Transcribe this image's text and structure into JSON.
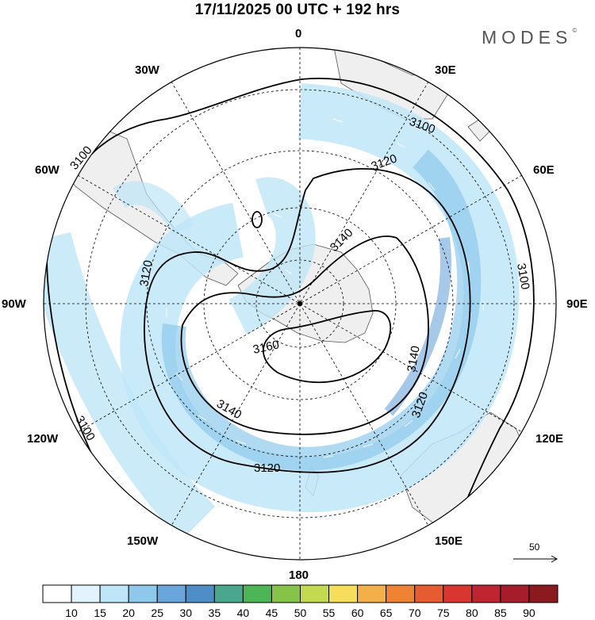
{
  "header": {
    "title": "17/11/2025  00 UTC  + 192 hrs",
    "brand": "MODES",
    "brand_mark": "©"
  },
  "map": {
    "projection": "south-polar-stereographic",
    "longitude_labels": {
      "0": "0",
      "30W": "30W",
      "30E": "30E",
      "60W": "60W",
      "60E": "60E",
      "90W": "90W",
      "90E": "90E",
      "120W": "120W",
      "120E": "120E",
      "150W": "150W",
      "150E": "150E",
      "180": "180"
    },
    "contour_labels": {
      "c3100_a": "3100",
      "c3100_b": "3100",
      "c3100_c": "3100",
      "c3100_d": "3100",
      "c3120_a": "3120",
      "c3120_b": "3120",
      "c3120_c": "3120",
      "c3120_d": "3120",
      "c3140_a": "3140",
      "c3140_b": "3140",
      "c3140_c": "3140",
      "c3160_a": "3160"
    },
    "reference_vector": "50"
  },
  "legend": {
    "ticks": [
      "10",
      "15",
      "20",
      "25",
      "30",
      "35",
      "40",
      "45",
      "50",
      "55",
      "60",
      "65",
      "70",
      "75",
      "80",
      "85",
      "90"
    ],
    "colors": [
      "#ffffff",
      "#e1f4fd",
      "#bfe6f8",
      "#8ec9ec",
      "#6aa5dc",
      "#4e8ec6",
      "#4ba68e",
      "#4cb556",
      "#86c449",
      "#c3da50",
      "#f6de5a",
      "#f3b048",
      "#ee8433",
      "#e65b2f",
      "#d93630",
      "#be2531",
      "#a51c2b",
      "#8b1a1f"
    ]
  }
}
